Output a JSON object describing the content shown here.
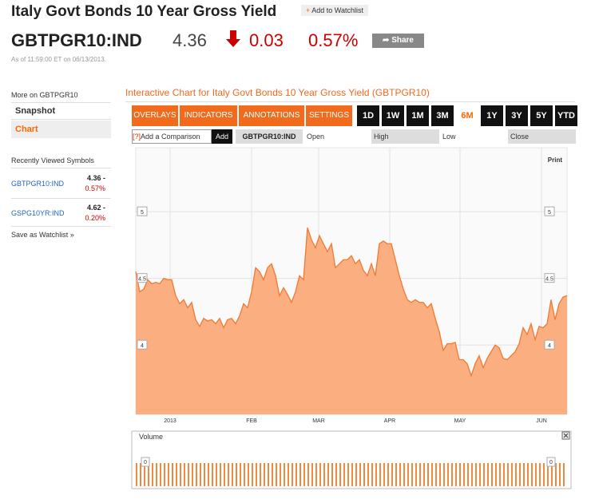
{
  "header": {
    "title": "Italy Govt Bonds 10 Year Gross Yield",
    "watchlist_button": "Add to Watchlist",
    "ticker": "GBTPGR10:IND",
    "price": "4.36",
    "change": "0.03",
    "change_pct": "0.57%",
    "share": "Share",
    "timestamp": "As of 11:59:00 ET on 06/13/2013."
  },
  "sidebar": {
    "more_on": "More on GBTPGR10",
    "links": [
      "Snapshot",
      "Chart"
    ],
    "recent_title": "Recently Viewed Symbols",
    "recent": [
      {
        "symbol": "GBTPGR10:IND",
        "price": "4.36 -",
        "change": "0.57%"
      },
      {
        "symbol": "GSPG10YR:IND",
        "price": "4.62 -",
        "change": "0.20%"
      }
    ],
    "save": "Save as Watchlist »"
  },
  "toolbar": {
    "heading": "Interactive Chart for Italy Govt Bonds 10 Year Gross Yield (GBTPGR10)",
    "menus": [
      "OVERLAYS ▼",
      "INDICATORS ▼",
      "ANNOTATIONS ▼",
      "SETTINGS ▼"
    ],
    "ranges": [
      "1D",
      "1W",
      "1M",
      "3M",
      "6M",
      "1Y",
      "3Y",
      "5Y",
      "YTD"
    ],
    "active_range": "6M",
    "help": "[?]",
    "compare_placeholder": "Add a Comparison",
    "add": "Add",
    "symbol": "GBTPGR10:IND",
    "fields": [
      "Open",
      "High",
      "Low",
      "Close"
    ],
    "print": "Print"
  },
  "chart_data": {
    "type": "area",
    "color": "#fbae80",
    "line_color": "#ef7a33",
    "values": [
      4.55,
      4.4,
      4.42,
      4.49,
      4.46,
      4.47,
      4.46,
      4.5,
      4.49,
      4.49,
      4.37,
      4.31,
      4.34,
      4.28,
      4.32,
      4.19,
      4.14,
      4.2,
      4.18,
      4.19,
      4.16,
      4.2,
      4.13,
      4.19,
      4.2,
      4.16,
      4.22,
      4.31,
      4.28,
      4.4,
      4.58,
      4.55,
      4.49,
      4.58,
      4.61,
      4.52,
      4.37,
      4.43,
      4.38,
      4.32,
      4.4,
      4.52,
      4.49,
      4.88,
      4.79,
      4.73,
      4.82,
      4.76,
      4.7,
      4.76,
      4.58,
      4.61,
      4.64,
      4.64,
      4.67,
      4.61,
      4.64,
      4.56,
      4.52,
      4.61,
      4.52,
      4.76,
      4.78,
      4.76,
      4.76,
      4.64,
      4.52,
      4.42,
      4.34,
      4.32,
      4.34,
      4.32,
      4.32,
      4.28,
      4.31,
      4.2,
      4.1,
      3.96,
      4.01,
      4.01,
      4.02,
      3.89,
      3.89,
      3.86,
      3.77,
      3.86,
      3.92,
      3.83,
      3.9,
      3.95,
      4.0,
      3.98,
      3.9,
      3.89,
      3.92,
      3.95,
      4.01,
      4.13,
      4.08,
      4.16,
      4.04,
      4.14,
      4.13,
      4.16,
      4.34,
      4.19,
      4.31,
      4.36,
      4.37
    ],
    "xlim": [
      0,
      108
    ],
    "xticks": [
      {
        "value": 8.6,
        "label": "2013"
      },
      {
        "value": 29,
        "label": "FEB"
      },
      {
        "value": 45.8,
        "label": "MAR"
      },
      {
        "value": 63.6,
        "label": "APR"
      },
      {
        "value": 81.2,
        "label": "MAY"
      },
      {
        "value": 101.6,
        "label": "JUN"
      }
    ],
    "ylim": [
      3.48,
      5.48
    ],
    "yticks": [
      4,
      4.5,
      5
    ],
    "volume": {
      "label": "Volume",
      "yticks": [
        0
      ]
    }
  }
}
